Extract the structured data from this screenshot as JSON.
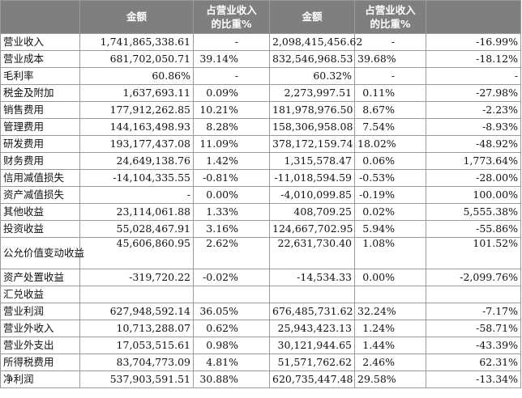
{
  "header": {
    "label": "",
    "col1": "金额",
    "col2_line1": "占营业收入",
    "col2_line2": "的比重%",
    "col3": "金额",
    "col4_line1": "占营业收入",
    "col4_line2": "的比重%",
    "col5": ""
  },
  "rows": [
    {
      "label": "营业收入",
      "c1": "1,741,865,338.61",
      "c2": "-",
      "c3": "2,098,415,456.62",
      "c4": "-",
      "c5": "-16.99%"
    },
    {
      "label": "营业成本",
      "c1": "681,702,050.71",
      "c2": "39.14%",
      "c3": "832,546,968.53",
      "c4": "39.68%",
      "c5": "-18.12%"
    },
    {
      "label": "毛利率",
      "c1": "60.86%",
      "c2": "-",
      "c3": "60.32%",
      "c4": "-",
      "c5": "-"
    },
    {
      "label": "税金及附加",
      "c1": "1,637,693.11",
      "c2": "0.09%",
      "c3": "2,273,997.51",
      "c4": "0.11%",
      "c5": "-27.98%"
    },
    {
      "label": "销售费用",
      "c1": "177,912,262.85",
      "c2": "10.21%",
      "c3": "181,978,976.50",
      "c4": "8.67%",
      "c5": "-2.23%"
    },
    {
      "label": "管理费用",
      "c1": "144,163,498.93",
      "c2": "8.28%",
      "c3": "158,306,958.08",
      "c4": "7.54%",
      "c5": "-8.93%"
    },
    {
      "label": "研发费用",
      "c1": "193,177,437.08",
      "c2": "11.09%",
      "c3": "378,172,159.74",
      "c4": "18.02%",
      "c5": "-48.92%"
    },
    {
      "label": "财务费用",
      "c1": "24,649,138.76",
      "c2": "1.42%",
      "c3": "1,315,578.47",
      "c4": "0.06%",
      "c5": "1,773.64%"
    },
    {
      "label": "信用减值损失",
      "c1": "-14,104,335.55",
      "c2": "-0.81%",
      "c3": "-11,018,594.59",
      "c4": "-0.53%",
      "c5": "-28.00%"
    },
    {
      "label": "资产减值损失",
      "c1": "-",
      "c2": "0.00%",
      "c3": "-4,010,099.85",
      "c4": "-0.19%",
      "c5": "100.00%"
    },
    {
      "label": "其他收益",
      "c1": "23,114,061.88",
      "c2": "1.33%",
      "c3": "408,709.25",
      "c4": "0.02%",
      "c5": "5,555.38%"
    },
    {
      "label": "投资收益",
      "c1": "55,028,467.91",
      "c2": "3.16%",
      "c3": "124,667,702.95",
      "c4": "5.94%",
      "c5": "-55.86%"
    },
    {
      "label": "公允价值变动收益",
      "c1": "45,606,860.95",
      "c2": "2.62%",
      "c3": "22,631,730.40",
      "c4": "1.08%",
      "c5": "101.52%"
    },
    {
      "label": "资产处置收益",
      "c1": "-319,720.22",
      "c2": "-0.02%",
      "c3": "-14,534.33",
      "c4": "0.00%",
      "c5": "-2,099.76%"
    },
    {
      "label": "汇兑收益",
      "c1": "",
      "c2": "",
      "c3": "",
      "c4": "",
      "c5": ""
    },
    {
      "label": "营业利润",
      "c1": "627,948,592.14",
      "c2": "36.05%",
      "c3": "676,485,731.62",
      "c4": "32.24%",
      "c5": "-7.17%"
    },
    {
      "label": "营业外收入",
      "c1": "10,713,288.07",
      "c2": "0.62%",
      "c3": "25,943,423.13",
      "c4": "1.24%",
      "c5": "-58.71%"
    },
    {
      "label": "营业外支出",
      "c1": "17,053,515.61",
      "c2": "0.98%",
      "c3": "30,121,944.65",
      "c4": "1.44%",
      "c5": "-43.39%"
    },
    {
      "label": "所得税费用",
      "c1": "83,704,773.09",
      "c2": "4.81%",
      "c3": "51,571,762.62",
      "c4": "2.46%",
      "c5": "62.31%"
    },
    {
      "label": "净利润",
      "c1": "537,903,591.51",
      "c2": "30.88%",
      "c3": "620,735,447.48",
      "c4": "29.58%",
      "c5": "-13.34%"
    }
  ],
  "highlight": {
    "row_label": "研发费用",
    "color": "#1e9a93"
  },
  "colors": {
    "header_bg": "#7f7f7f",
    "header_text": "#ffffff",
    "border": "#9a9a9a"
  }
}
